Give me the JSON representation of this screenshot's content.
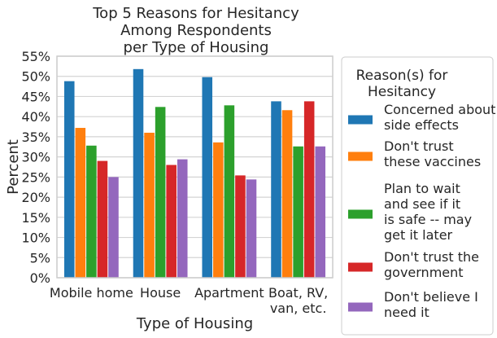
{
  "chart_data": {
    "type": "bar",
    "title": [
      "Top 5 Reasons for Hesitancy",
      "Among Respondents",
      "per Type of Housing"
    ],
    "xlabel": "Type of Housing",
    "ylabel": "Percent",
    "ylim": [
      0,
      55
    ],
    "yticks": [
      "0%",
      "5%",
      "10%",
      "15%",
      "20%",
      "25%",
      "30%",
      "35%",
      "40%",
      "45%",
      "50%",
      "55%"
    ],
    "categories": [
      [
        "Mobile home"
      ],
      [
        "House"
      ],
      [
        "Apartment"
      ],
      [
        "Boat, RV,",
        "van, etc."
      ]
    ],
    "grid": "horizontal",
    "legend_placement": "outside-right",
    "legend_title": [
      "Reason(s) for",
      "Hesitancy"
    ],
    "series": [
      {
        "name": [
          "Concerned about",
          "side effects"
        ],
        "color": "#1f77b4",
        "values": [
          48.8,
          51.8,
          49.8,
          43.8
        ]
      },
      {
        "name": [
          "Don't trust",
          "these vaccines"
        ],
        "color": "#ff7f0e",
        "values": [
          37.2,
          36.0,
          33.6,
          41.6
        ]
      },
      {
        "name": [
          "Plan to wait",
          "and see if it",
          "is safe -- may",
          "get it later"
        ],
        "color": "#2ca02c",
        "values": [
          32.8,
          42.4,
          42.8,
          32.6
        ]
      },
      {
        "name": [
          "Don't trust the",
          "government"
        ],
        "color": "#d62728",
        "values": [
          29.0,
          28.0,
          25.4,
          43.8
        ]
      },
      {
        "name": [
          "Don't believe I",
          "need it"
        ],
        "color": "#9467bd",
        "values": [
          25.0,
          29.4,
          24.4,
          32.6
        ]
      }
    ]
  }
}
